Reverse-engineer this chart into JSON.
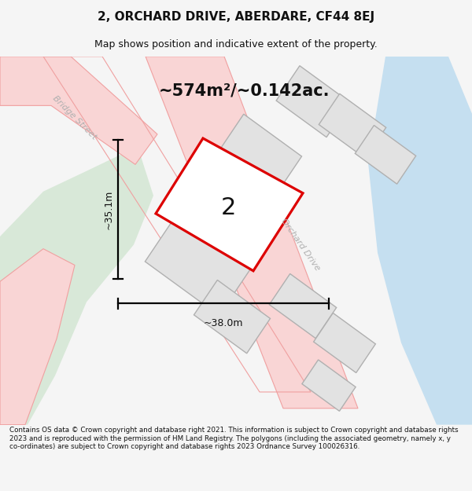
{
  "title": "2, ORCHARD DRIVE, ABERDARE, CF44 8EJ",
  "subtitle": "Map shows position and indicative extent of the property.",
  "footer": "Contains OS data © Crown copyright and database right 2021. This information is subject to Crown copyright and database rights 2023 and is reproduced with the permission of HM Land Registry. The polygons (including the associated geometry, namely x, y co-ordinates) are subject to Crown copyright and database rights 2023 Ordnance Survey 100026316.",
  "area_text": "~574m²/~0.142ac.",
  "dim_height": "~35.1m",
  "dim_width": "~38.0m",
  "street_label_bridge": "Bridge Street",
  "street_label_orchard": "Orchard Drive",
  "property_label": "2",
  "bg_color": "#f5f5f5",
  "map_bg": "#edecea",
  "road_fill_pink": "#f9d5d5",
  "road_edge_pink": "#f0a0a0",
  "green_area": "#d8e8d8",
  "blue_area": "#c5dff0",
  "building_fill": "#e2e2e2",
  "building_stroke": "#b0b0b0",
  "plot_stroke": "#dd0000",
  "plot_fill": "#ffffff",
  "dim_color": "#111111",
  "title_color": "#111111",
  "footer_color": "#111111"
}
